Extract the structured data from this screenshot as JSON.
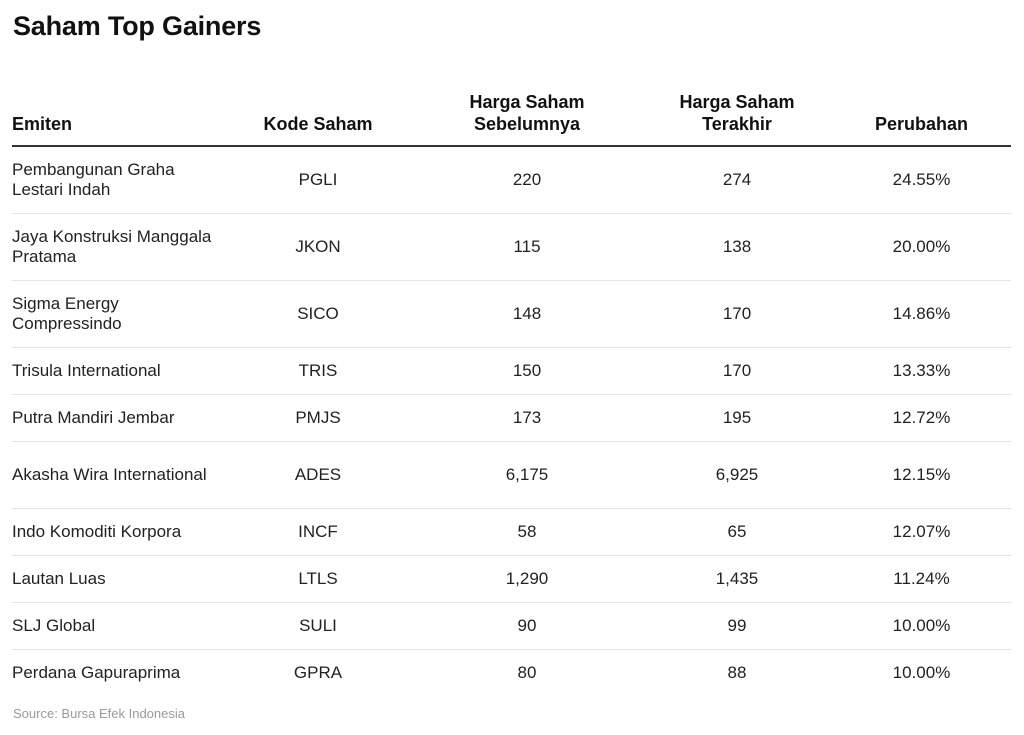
{
  "title": "Saham Top Gainers",
  "headers": {
    "emiten": "Emiten",
    "kode": "Kode Saham",
    "harga_sebelum_1": "Harga Saham",
    "harga_sebelum_2": "Sebelumnya",
    "harga_terakhir_1": "Harga Saham",
    "harga_terakhir_2": "Terakhir",
    "perubahan": "Perubahan"
  },
  "rows": [
    {
      "emiten": "Pembangunan Graha Lestari Indah",
      "kode": "PGLI",
      "sebelum": "220",
      "terakhir": "274",
      "perubahan": "24.55%"
    },
    {
      "emiten": "Jaya Konstruksi Manggala Pratama",
      "kode": "JKON",
      "sebelum": "115",
      "terakhir": "138",
      "perubahan": "20.00%"
    },
    {
      "emiten": "Sigma Energy Compressindo",
      "kode": "SICO",
      "sebelum": "148",
      "terakhir": "170",
      "perubahan": "14.86%"
    },
    {
      "emiten": "Trisula International",
      "kode": "TRIS",
      "sebelum": "150",
      "terakhir": "170",
      "perubahan": "13.33%"
    },
    {
      "emiten": "Putra Mandiri Jembar",
      "kode": "PMJS",
      "sebelum": "173",
      "terakhir": "195",
      "perubahan": "12.72%"
    },
    {
      "emiten": "Akasha Wira International",
      "kode": "ADES",
      "sebelum": "6,175",
      "terakhir": "6,925",
      "perubahan": "12.15%"
    },
    {
      "emiten": "Indo Komoditi Korpora",
      "kode": "INCF",
      "sebelum": "58",
      "terakhir": "65",
      "perubahan": "12.07%"
    },
    {
      "emiten": "Lautan Luas",
      "kode": "LTLS",
      "sebelum": "1,290",
      "terakhir": "1,435",
      "perubahan": "11.24%"
    },
    {
      "emiten": "SLJ Global",
      "kode": "SULI",
      "sebelum": "90",
      "terakhir": "99",
      "perubahan": "10.00%"
    },
    {
      "emiten": "Perdana Gapuraprima",
      "kode": "GPRA",
      "sebelum": "80",
      "terakhir": "88",
      "perubahan": "10.00%"
    }
  ],
  "source": "Source: Bursa Efek Indonesia"
}
